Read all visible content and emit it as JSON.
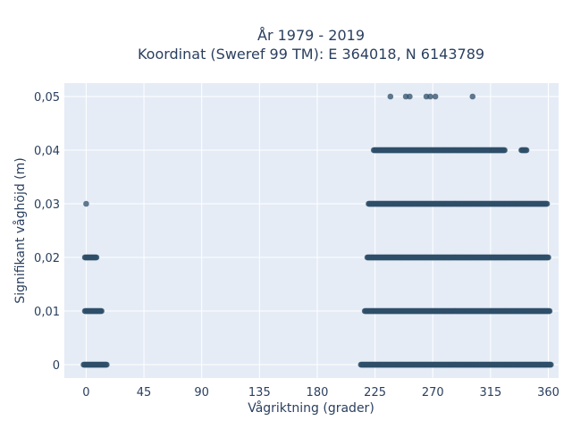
{
  "chart_data": {
    "type": "scatter",
    "title_line1": "År 1979 - 2019",
    "title_line2": "Koordinat (Sweref 99 TM): E 364018, N 6143789",
    "xlabel": "Vågriktning (grader)",
    "ylabel": "Signifikant våghöjd (m)",
    "xlim": [
      -17,
      368
    ],
    "ylim": [
      -0.0025,
      0.0525
    ],
    "x_ticks": [
      0,
      45,
      90,
      135,
      180,
      225,
      270,
      315,
      360
    ],
    "x_tick_labels": [
      "0",
      "45",
      "90",
      "135",
      "180",
      "225",
      "270",
      "315",
      "360"
    ],
    "y_ticks": [
      0,
      0.01,
      0.02,
      0.03,
      0.04,
      0.05
    ],
    "y_tick_labels": [
      "0",
      "0,01",
      "0,02",
      "0,03",
      "0,04",
      "0,05"
    ],
    "grid": true,
    "marker_color": "#2f4f6a",
    "background_color": "#e5ecf6",
    "series": [
      {
        "points": [
          {
            "y": 0,
            "x_ranges": [
              [
                -2,
                16
              ],
              [
                214,
                362
              ]
            ]
          },
          {
            "y": 0.01,
            "x_ranges": [
              [
                -1,
                12
              ],
              [
                217,
                361
              ]
            ]
          },
          {
            "y": 0.02,
            "x_ranges": [
              [
                -1,
                8
              ],
              [
                219,
                360
              ]
            ]
          },
          {
            "y": 0.03,
            "x_ranges": [
              [
                0,
                0
              ],
              [
                220,
                359
              ]
            ]
          },
          {
            "y": 0.04,
            "x_ranges": [
              [
                224,
                326
              ],
              [
                339,
                343
              ]
            ]
          },
          {
            "y": 0.05,
            "x_values": [
              237,
              249,
              252,
              265,
              268,
              272,
              301
            ]
          }
        ]
      }
    ]
  }
}
